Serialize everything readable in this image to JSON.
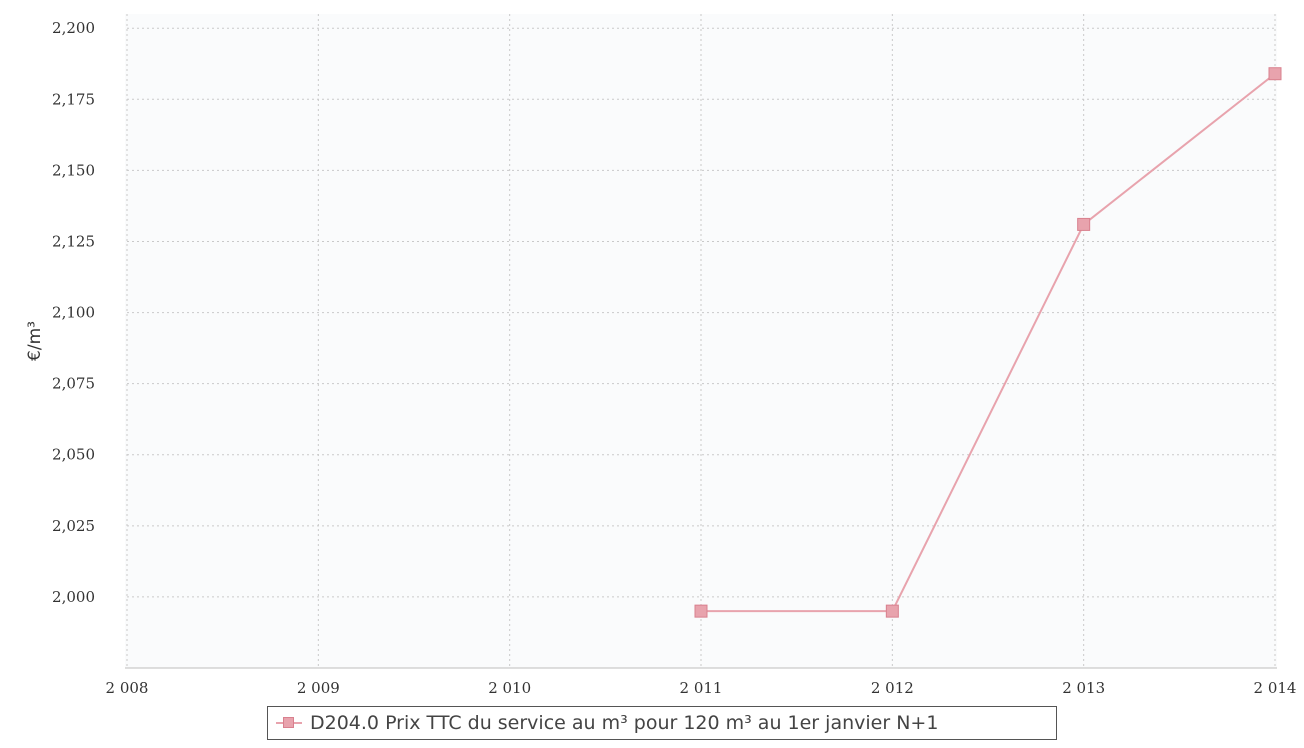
{
  "colors": {
    "series": "#e8a3ad",
    "marker_fill": "#e8a3ad",
    "marker_stroke": "#d9808e",
    "grid": "#c9c9c9",
    "axis_text": "#333333",
    "plot_background": "#fafbfc"
  },
  "chart_data": {
    "type": "line",
    "title": "",
    "xlabel": "",
    "ylabel": "€/m³",
    "x_tick_labels": [
      "2 008",
      "2 009",
      "2 010",
      "2 011",
      "2 012",
      "2 013",
      "2 014"
    ],
    "y_tick_labels": [
      "2,000",
      "2,025",
      "2,050",
      "2,075",
      "2,100",
      "2,125",
      "2,150",
      "2,175",
      "2,200"
    ],
    "xlim": [
      2008,
      2014
    ],
    "ylim": [
      1.975,
      2.205
    ],
    "grid": true,
    "legend_position": "bottom-center",
    "series": [
      {
        "name": "D204.0 Prix TTC du service au m³ pour 120 m³ au 1er janvier N+1",
        "x": [
          2011,
          2012,
          2013,
          2014
        ],
        "y": [
          1.995,
          1.995,
          2.131,
          2.184
        ]
      }
    ]
  }
}
